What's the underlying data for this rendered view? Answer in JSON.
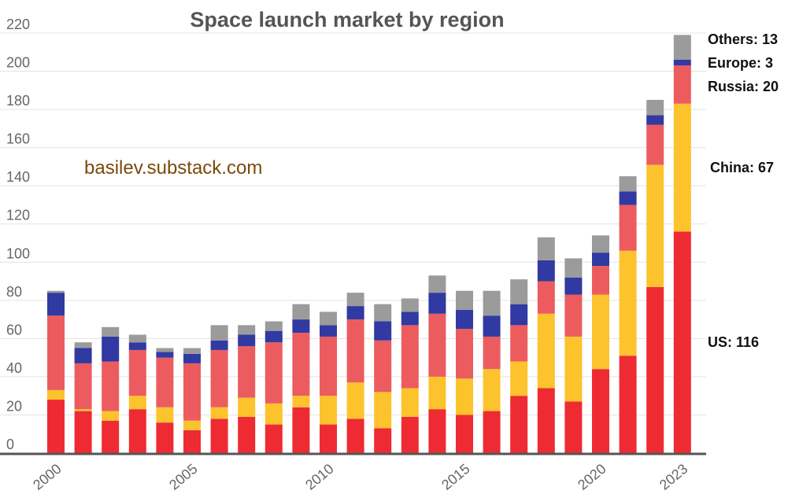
{
  "chart_data": {
    "type": "bar",
    "stacked": true,
    "title": "Space launch market by region",
    "watermark": "basilev.substack.com",
    "categories": [
      "2000",
      "2001",
      "2002",
      "2003",
      "2004",
      "2005",
      "2006",
      "2007",
      "2008",
      "2009",
      "2010",
      "2011",
      "2012",
      "2013",
      "2014",
      "2015",
      "2016",
      "2017",
      "2018",
      "2019",
      "2020",
      "2021",
      "2022",
      "2023"
    ],
    "x_tick_labels": [
      {
        "category": "2000",
        "label": "2000"
      },
      {
        "category": "2005",
        "label": "2005"
      },
      {
        "category": "2010",
        "label": "2010"
      },
      {
        "category": "2015",
        "label": "2015"
      },
      {
        "category": "2020",
        "label": "2020"
      },
      {
        "category": "2023",
        "label": "2023"
      }
    ],
    "y_ticks": [
      0,
      20,
      40,
      60,
      80,
      100,
      120,
      140,
      160,
      180,
      200,
      220
    ],
    "ylim": [
      0,
      220
    ],
    "grid": true,
    "series": [
      {
        "key": "us",
        "color": "#ee2b33",
        "values": [
          28,
          22,
          17,
          23,
          16,
          12,
          18,
          19,
          15,
          24,
          15,
          18,
          13,
          19,
          23,
          20,
          22,
          30,
          34,
          27,
          44,
          51,
          87,
          116
        ]
      },
      {
        "key": "china",
        "color": "#fcc32c",
        "values": [
          5,
          1,
          5,
          7,
          8,
          5,
          6,
          10,
          11,
          6,
          15,
          19,
          19,
          15,
          17,
          19,
          22,
          18,
          39,
          34,
          39,
          55,
          64,
          67
        ]
      },
      {
        "key": "russia",
        "color": "#ec5c5f",
        "values": [
          39,
          24,
          26,
          24,
          26,
          30,
          30,
          27,
          32,
          33,
          31,
          33,
          27,
          33,
          33,
          26,
          17,
          19,
          17,
          22,
          15,
          24,
          21,
          20
        ]
      },
      {
        "key": "europe",
        "color": "#3139a2",
        "values": [
          12,
          8,
          13,
          4,
          3,
          5,
          5,
          6,
          6,
          7,
          6,
          7,
          10,
          7,
          11,
          10,
          11,
          11,
          11,
          9,
          7,
          7,
          5,
          3
        ]
      },
      {
        "key": "others",
        "color": "#9b9b9b",
        "values": [
          1,
          3,
          5,
          4,
          2,
          3,
          8,
          5,
          5,
          8,
          7,
          7,
          9,
          7,
          9,
          10,
          13,
          13,
          12,
          10,
          9,
          8,
          8,
          13
        ]
      }
    ],
    "annotations": [
      {
        "series": "others",
        "text": "Others: 13"
      },
      {
        "series": "europe",
        "text": "Europe: 3"
      },
      {
        "series": "russia",
        "text": "Russia: 20"
      },
      {
        "series": "china",
        "text": "China: 67"
      },
      {
        "series": "us",
        "text": "US: 116"
      }
    ]
  }
}
